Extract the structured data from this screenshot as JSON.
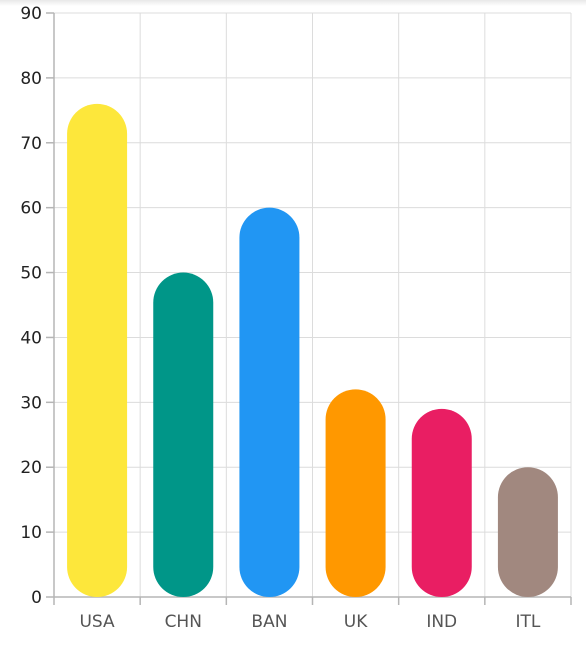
{
  "chart_data": {
    "type": "bar",
    "categories": [
      "USA",
      "CHN",
      "BAN",
      "UK",
      "IND",
      "ITL"
    ],
    "values": [
      76,
      50,
      60,
      32,
      29,
      20
    ],
    "colors": [
      "#fde73b",
      "#009688",
      "#2196f3",
      "#ff9800",
      "#e91e63",
      "#a1887f"
    ],
    "ylim": [
      0,
      90
    ],
    "yticks": [
      0,
      10,
      20,
      30,
      40,
      50,
      60,
      70,
      80,
      90
    ],
    "grid": true,
    "bar_shape": "rounded-pill"
  }
}
